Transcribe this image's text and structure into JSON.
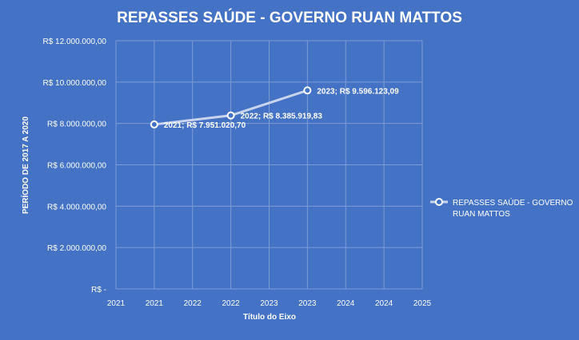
{
  "chart_data": {
    "type": "line",
    "title": "REPASSES SAÚDE - GOVERNO RUAN MATTOS",
    "xlabel": "Título do Eixo",
    "ylabel": "PERÍODO DE 2017 A 2020",
    "x_tick_labels": [
      "2021",
      "2021",
      "2022",
      "2022",
      "2023",
      "2023",
      "2024",
      "2024",
      "2025"
    ],
    "y_tick_labels": [
      "R$ -",
      "R$ 2.000.000,00",
      "R$ 4.000.000,00",
      "R$ 6.000.000,00",
      "R$ 8.000.000,00",
      "R$ 10.000.000,00",
      "R$ 12.000.000,00"
    ],
    "ylim": [
      0,
      12000000
    ],
    "grid": true,
    "legend_position": "right",
    "colors": {
      "background": "#4472C4",
      "line": "#C9D5EE",
      "marker_fill": "#4472C4",
      "grid": "#7D9CD6",
      "text": "#FFFFFF"
    },
    "series": [
      {
        "name": "REPASSES SAÚDE - GOVERNO RUAN MATTOS",
        "points": [
          {
            "x_category": 1,
            "y": 7951020.7,
            "label": "2021;  R$ 7.951.020,70"
          },
          {
            "x_category": 3,
            "y": 8385919.83,
            "label": "2022;  R$ 8.385.919,83"
          },
          {
            "x_category": 5,
            "y": 9596123.09,
            "label": "2023;  R$ 9.596.123,09"
          }
        ]
      }
    ],
    "legend_lines": [
      "REPASSES SAÚDE - GOVERNO",
      "RUAN MATTOS"
    ]
  }
}
